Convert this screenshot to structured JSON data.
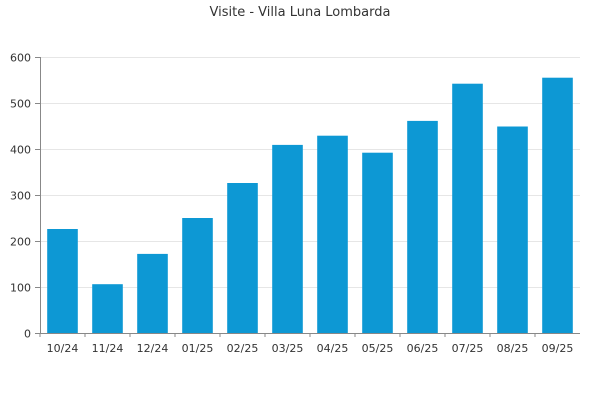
{
  "chart_data": {
    "type": "bar",
    "title": "Visite - Villa Luna Lombarda",
    "xlabel": "",
    "ylabel": "",
    "categories": [
      "10/24",
      "11/24",
      "12/24",
      "01/25",
      "02/25",
      "03/25",
      "04/25",
      "05/25",
      "06/25",
      "07/25",
      "08/25",
      "09/25"
    ],
    "values": [
      226,
      106,
      172,
      250,
      326,
      409,
      429,
      392,
      461,
      542,
      449,
      555
    ],
    "ylim": [
      0,
      600
    ],
    "yticks": [
      0,
      100,
      200,
      300,
      400,
      500,
      600
    ],
    "grid": true,
    "legend": "none",
    "colors": {
      "bar": "#0d98d4",
      "grid": "#e6e6e6",
      "axis": "#888888",
      "text": "#333333"
    }
  }
}
